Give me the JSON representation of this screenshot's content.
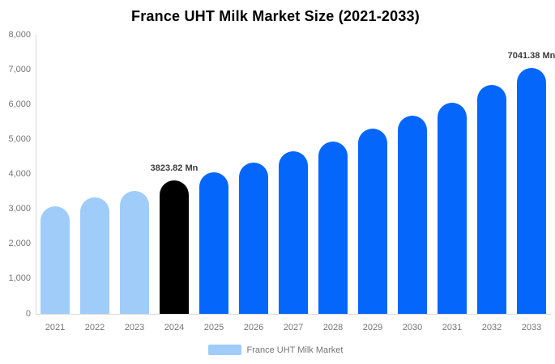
{
  "chart": {
    "title": "France UHT Milk Market Size (2021-2033)"
  },
  "legend": {
    "label": "France UHT Milk Market",
    "swatch_color": "#A0CCFA"
  },
  "chart_data": {
    "type": "bar",
    "title": "France UHT Milk Market Size (2021-2033)",
    "xlabel": "",
    "ylabel": "",
    "value_unit": "Mn",
    "categories": [
      "2021",
      "2022",
      "2023",
      "2024",
      "2025",
      "2026",
      "2027",
      "2028",
      "2029",
      "2030",
      "2031",
      "2032",
      "2033"
    ],
    "values": [
      3080,
      3330,
      3520,
      3823.82,
      4050,
      4330,
      4650,
      4930,
      5300,
      5680,
      6050,
      6560,
      7041.38
    ],
    "series": [
      {
        "name": "France UHT Milk Market",
        "values": [
          3080,
          3330,
          3520,
          3823.82,
          4050,
          4330,
          4650,
          4930,
          5300,
          5680,
          6050,
          6560,
          7041.38
        ]
      }
    ],
    "point_color_roles": [
      "historical",
      "historical",
      "historical",
      "current",
      "forecast",
      "forecast",
      "forecast",
      "forecast",
      "forecast",
      "forecast",
      "forecast",
      "forecast",
      "forecast"
    ],
    "colors": {
      "historical": "#A0CCFA",
      "current": "#000000",
      "forecast": "#0566FB"
    },
    "annotations": [
      {
        "category": "2024",
        "text": "3823.82 Mn"
      },
      {
        "category": "2033",
        "text": "7041.38 Mn"
      }
    ],
    "ylim": [
      0,
      8000
    ],
    "yticks": [
      0,
      1000,
      2000,
      3000,
      4000,
      5000,
      6000,
      7000,
      8000
    ],
    "ytick_labels": [
      "0",
      "1,000",
      "2,000",
      "3,000",
      "4,000",
      "5,000",
      "6,000",
      "7,000",
      "8,000"
    ],
    "grid": false,
    "legend_position": "bottom"
  }
}
